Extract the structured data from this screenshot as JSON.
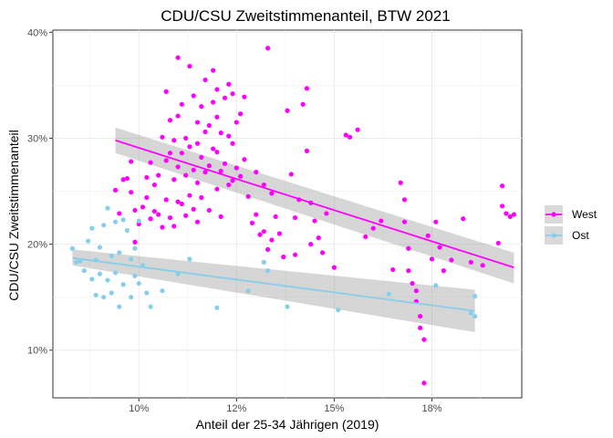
{
  "chart_data": {
    "type": "scatter",
    "title": "CDU/CSU Zweitstimmenanteil, BTW 2021",
    "xlabel": "Anteil der 25-34 Jährigen (2019)",
    "ylabel": "CDU/CSU Zweitstimmenanteil",
    "xlim": [
      7.8,
      19.8
    ],
    "ylim": [
      5.5,
      40.2
    ],
    "x_ticks": [
      10,
      12.5,
      15,
      17.5
    ],
    "x_tick_labels": [
      "10%",
      "12%",
      "15%",
      "18%"
    ],
    "y_ticks": [
      10,
      20,
      30,
      40
    ],
    "y_tick_labels": [
      "10%",
      "20%",
      "30%",
      "40%"
    ],
    "grid": true,
    "legend_position": "right",
    "series": [
      {
        "name": "West",
        "color": "#ff00ff",
        "points": [
          [
            9.4,
            25.1
          ],
          [
            9.5,
            22.9
          ],
          [
            9.6,
            26.1
          ],
          [
            9.7,
            26.2
          ],
          [
            9.8,
            24.9
          ],
          [
            9.8,
            27.8
          ],
          [
            9.9,
            23.2
          ],
          [
            9.9,
            20.2
          ],
          [
            10.0,
            21.9
          ],
          [
            10.1,
            23.5
          ],
          [
            10.2,
            26.3
          ],
          [
            10.2,
            24.4
          ],
          [
            10.3,
            27.7
          ],
          [
            10.3,
            22.4
          ],
          [
            10.4,
            25.6
          ],
          [
            10.4,
            23.1
          ],
          [
            10.5,
            22.8
          ],
          [
            10.5,
            26.5
          ],
          [
            10.6,
            21.6
          ],
          [
            10.6,
            30.1
          ],
          [
            10.7,
            34.4
          ],
          [
            10.7,
            27.9
          ],
          [
            10.7,
            24.2
          ],
          [
            10.8,
            31.7
          ],
          [
            10.8,
            28.6
          ],
          [
            10.8,
            22.5
          ],
          [
            10.9,
            29.8
          ],
          [
            10.9,
            26.1
          ],
          [
            10.9,
            21.7
          ],
          [
            11.0,
            32.1
          ],
          [
            11.0,
            27.3
          ],
          [
            11.0,
            24.0
          ],
          [
            11.0,
            37.6
          ],
          [
            11.1,
            33.2
          ],
          [
            11.1,
            28.6
          ],
          [
            11.1,
            23.8
          ],
          [
            11.2,
            30.0
          ],
          [
            11.2,
            26.5
          ],
          [
            11.2,
            22.7
          ],
          [
            11.3,
            24.6
          ],
          [
            11.3,
            29.2
          ],
          [
            11.3,
            36.8
          ],
          [
            11.4,
            34.0
          ],
          [
            11.4,
            27.0
          ],
          [
            11.4,
            23.3
          ],
          [
            11.5,
            31.5
          ],
          [
            11.5,
            29.5
          ],
          [
            11.5,
            25.8
          ],
          [
            11.5,
            22.1
          ],
          [
            11.6,
            33.0
          ],
          [
            11.6,
            28.2
          ],
          [
            11.6,
            24.4
          ],
          [
            11.7,
            35.5
          ],
          [
            11.7,
            30.6
          ],
          [
            11.7,
            26.8
          ],
          [
            11.8,
            31.2
          ],
          [
            11.8,
            27.4
          ],
          [
            11.8,
            23.2
          ],
          [
            11.9,
            33.4
          ],
          [
            11.9,
            29.0
          ],
          [
            11.9,
            36.4
          ],
          [
            12.0,
            32.0
          ],
          [
            12.0,
            28.7
          ],
          [
            12.0,
            25.2
          ],
          [
            12.0,
            34.6
          ],
          [
            12.1,
            30.5
          ],
          [
            12.1,
            26.9
          ],
          [
            12.1,
            22.6
          ],
          [
            12.2,
            33.8
          ],
          [
            12.2,
            27.6
          ],
          [
            12.3,
            35.1
          ],
          [
            12.3,
            30.2
          ],
          [
            12.3,
            25.6
          ],
          [
            12.4,
            34.2
          ],
          [
            12.4,
            29.5
          ],
          [
            12.4,
            26.0
          ],
          [
            12.5,
            31.5
          ],
          [
            12.5,
            27.2
          ],
          [
            12.6,
            32.3
          ],
          [
            12.6,
            26.4
          ],
          [
            12.7,
            33.9
          ],
          [
            12.7,
            28.0
          ],
          [
            12.8,
            24.5
          ],
          [
            12.9,
            22.0
          ],
          [
            13.0,
            26.8
          ],
          [
            13.0,
            22.8
          ],
          [
            13.1,
            20.9
          ],
          [
            13.2,
            25.6
          ],
          [
            13.2,
            21.2
          ],
          [
            13.3,
            38.5
          ],
          [
            13.3,
            19.5
          ],
          [
            13.4,
            24.8
          ],
          [
            13.4,
            20.4
          ],
          [
            13.5,
            22.6
          ],
          [
            13.6,
            21.0
          ],
          [
            13.7,
            18.8
          ],
          [
            13.8,
            32.6
          ],
          [
            13.9,
            26.6
          ],
          [
            14.0,
            22.5
          ],
          [
            14.0,
            19.0
          ],
          [
            14.1,
            24.2
          ],
          [
            14.2,
            33.2
          ],
          [
            14.3,
            34.7
          ],
          [
            14.3,
            28.8
          ],
          [
            14.4,
            23.9
          ],
          [
            14.4,
            20.0
          ],
          [
            14.5,
            22.2
          ],
          [
            14.6,
            20.6
          ],
          [
            14.7,
            19.2
          ],
          [
            14.8,
            22.9
          ],
          [
            15.0,
            17.8
          ],
          [
            15.3,
            30.3
          ],
          [
            15.4,
            30.1
          ],
          [
            15.6,
            30.8
          ],
          [
            15.8,
            20.7
          ],
          [
            16.0,
            21.5
          ],
          [
            16.2,
            22.2
          ],
          [
            16.5,
            17.6
          ],
          [
            16.7,
            25.8
          ],
          [
            16.8,
            24.2
          ],
          [
            16.8,
            22.1
          ],
          [
            16.9,
            19.6
          ],
          [
            16.9,
            17.5
          ],
          [
            17.0,
            16.3
          ],
          [
            17.1,
            15.6
          ],
          [
            17.1,
            14.6
          ],
          [
            17.2,
            13.2
          ],
          [
            17.2,
            12.1
          ],
          [
            17.3,
            11.0
          ],
          [
            17.3,
            6.9
          ],
          [
            17.4,
            20.8
          ],
          [
            17.5,
            18.6
          ],
          [
            17.6,
            22.1
          ],
          [
            17.7,
            19.7
          ],
          [
            17.8,
            17.5
          ],
          [
            18.0,
            18.5
          ],
          [
            18.3,
            22.4
          ],
          [
            18.5,
            18.3
          ],
          [
            18.8,
            18.0
          ],
          [
            19.2,
            20.1
          ],
          [
            19.3,
            25.5
          ],
          [
            19.3,
            23.6
          ],
          [
            19.4,
            22.9
          ],
          [
            19.5,
            22.6
          ],
          [
            19.6,
            22.8
          ]
        ]
      },
      {
        "name": "Ost",
        "color": "#87ceeb",
        "points": [
          [
            8.3,
            19.6
          ],
          [
            8.4,
            18.3
          ],
          [
            8.5,
            18.4
          ],
          [
            8.6,
            17.5
          ],
          [
            8.7,
            20.3
          ],
          [
            8.8,
            21.5
          ],
          [
            8.8,
            16.7
          ],
          [
            8.9,
            15.2
          ],
          [
            8.9,
            18.5
          ],
          [
            9.0,
            17.2
          ],
          [
            9.0,
            19.7
          ],
          [
            9.1,
            15.0
          ],
          [
            9.1,
            21.8
          ],
          [
            9.2,
            23.4
          ],
          [
            9.2,
            16.6
          ],
          [
            9.3,
            18.9
          ],
          [
            9.3,
            15.4
          ],
          [
            9.4,
            22.1
          ],
          [
            9.4,
            17.3
          ],
          [
            9.5,
            14.1
          ],
          [
            9.5,
            19.2
          ],
          [
            9.6,
            22.3
          ],
          [
            9.6,
            16.2
          ],
          [
            9.7,
            21.3
          ],
          [
            9.8,
            18.6
          ],
          [
            9.8,
            15.0
          ],
          [
            9.9,
            19.6
          ],
          [
            9.9,
            17.0
          ],
          [
            10.0,
            22.2
          ],
          [
            10.0,
            16.3
          ],
          [
            10.1,
            18.0
          ],
          [
            10.2,
            15.4
          ],
          [
            10.3,
            14.1
          ],
          [
            10.6,
            15.6
          ],
          [
            11.0,
            17.2
          ],
          [
            11.3,
            18.6
          ],
          [
            12.0,
            14.0
          ],
          [
            12.8,
            15.6
          ],
          [
            13.2,
            18.3
          ],
          [
            13.3,
            17.5
          ],
          [
            13.8,
            14.1
          ],
          [
            15.1,
            13.8
          ],
          [
            16.4,
            15.3
          ],
          [
            17.6,
            16.1
          ],
          [
            18.5,
            13.5
          ],
          [
            18.6,
            15.1
          ],
          [
            18.6,
            13.2
          ]
        ]
      }
    ],
    "trend_lines": [
      {
        "series": "West",
        "x": [
          9.4,
          19.6
        ],
        "y": [
          29.8,
          17.8
        ],
        "ci": [
          [
            28.6,
            31.0
          ],
          [
            16.3,
            19.2
          ]
        ]
      },
      {
        "series": "Ost",
        "x": [
          8.3,
          18.6
        ],
        "y": [
          18.7,
          13.7
        ],
        "ci": [
          [
            18.0,
            19.5
          ],
          [
            11.7,
            15.7
          ]
        ]
      }
    ]
  }
}
